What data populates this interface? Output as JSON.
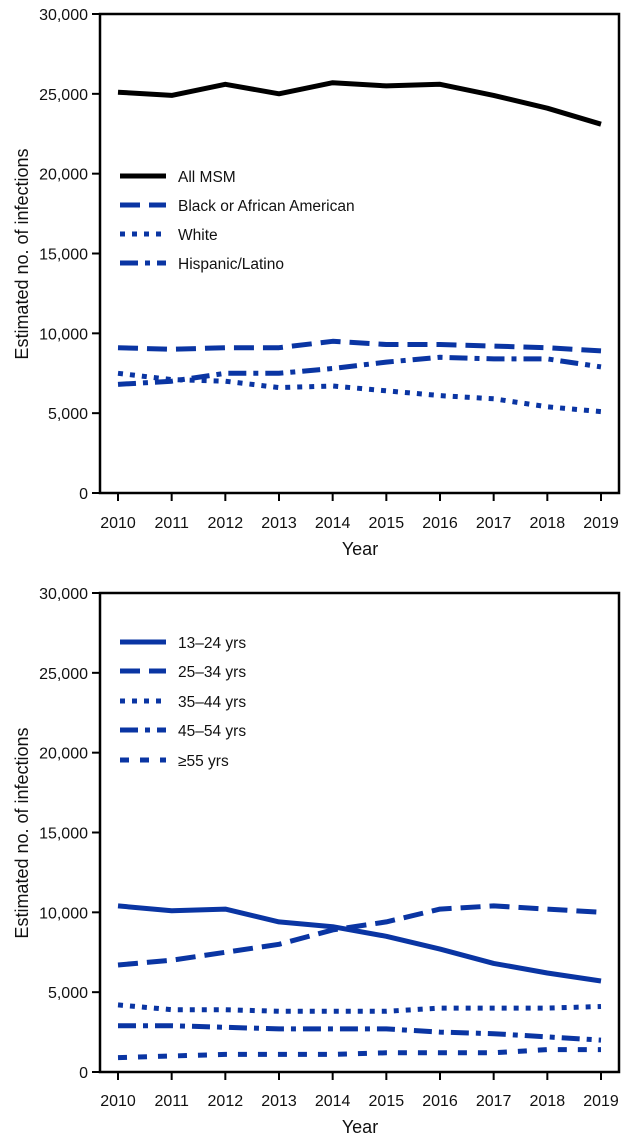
{
  "chart_data": [
    {
      "type": "line",
      "xlabel": "Year",
      "ylabel": "Estimated no. of infections",
      "ylim": [
        0,
        30000
      ],
      "yticks": [
        "0",
        "5,000",
        "10,000",
        "15,000",
        "20,000",
        "25,000",
        "30,000"
      ],
      "ytick_values": [
        0,
        5000,
        10000,
        15000,
        20000,
        25000,
        30000
      ],
      "x": [
        2010,
        2011,
        2012,
        2013,
        2014,
        2015,
        2016,
        2017,
        2018,
        2019
      ],
      "xticks": [
        "2010",
        "2011",
        "2012",
        "2013",
        "2014",
        "2015",
        "2016",
        "2017",
        "2018",
        "2019"
      ],
      "grid": false,
      "legend_position": "top-left",
      "series": [
        {
          "name": "All MSM",
          "color": "#000000",
          "style": "solid",
          "values": [
            25100,
            24900,
            25600,
            25000,
            25700,
            25500,
            25600,
            24900,
            24100,
            23100
          ]
        },
        {
          "name": "Black or African American",
          "color": "#0a35a3",
          "style": "dashed",
          "values": [
            9100,
            9000,
            9100,
            9100,
            9500,
            9300,
            9300,
            9200,
            9100,
            8900
          ]
        },
        {
          "name": "White",
          "color": "#0a35a3",
          "style": "dotted",
          "values": [
            7500,
            7100,
            7000,
            6600,
            6700,
            6400,
            6100,
            5900,
            5400,
            5100
          ]
        },
        {
          "name": "Hispanic/Latino",
          "color": "#0a35a3",
          "style": "dash-dot",
          "values": [
            6800,
            7000,
            7500,
            7500,
            7800,
            8200,
            8500,
            8400,
            8400,
            7900
          ]
        }
      ]
    },
    {
      "type": "line",
      "xlabel": "Year",
      "ylabel": "Estimated no. of infections",
      "ylim": [
        0,
        30000
      ],
      "yticks": [
        "0",
        "5,000",
        "10,000",
        "15,000",
        "20,000",
        "25,000",
        "30,000"
      ],
      "ytick_values": [
        0,
        5000,
        10000,
        15000,
        20000,
        25000,
        30000
      ],
      "x": [
        2010,
        2011,
        2012,
        2013,
        2014,
        2015,
        2016,
        2017,
        2018,
        2019
      ],
      "xticks": [
        "2010",
        "2011",
        "2012",
        "2013",
        "2014",
        "2015",
        "2016",
        "2017",
        "2018",
        "2019"
      ],
      "grid": false,
      "legend_position": "top-left",
      "series": [
        {
          "name": "13–24 yrs",
          "color": "#0a35a3",
          "style": "solid",
          "values": [
            10400,
            10100,
            10200,
            9400,
            9100,
            8500,
            7700,
            6800,
            6200,
            5700
          ]
        },
        {
          "name": "25–34 yrs",
          "color": "#0a35a3",
          "style": "dashed",
          "values": [
            6700,
            7000,
            7500,
            8000,
            8900,
            9400,
            10200,
            10400,
            10200,
            10000
          ]
        },
        {
          "name": "35–44 yrs",
          "color": "#0a35a3",
          "style": "dotted",
          "values": [
            4200,
            3900,
            3900,
            3800,
            3800,
            3800,
            4000,
            4000,
            4000,
            4100
          ]
        },
        {
          "name": "45–54 yrs",
          "color": "#0a35a3",
          "style": "dash-dot",
          "values": [
            2900,
            2900,
            2800,
            2700,
            2700,
            2700,
            2500,
            2400,
            2200,
            2000
          ]
        },
        {
          "name": "≥55 yrs",
          "color": "#0a35a3",
          "style": "short-dash",
          "values": [
            900,
            1000,
            1100,
            1100,
            1100,
            1200,
            1200,
            1200,
            1400,
            1400
          ]
        }
      ]
    }
  ]
}
